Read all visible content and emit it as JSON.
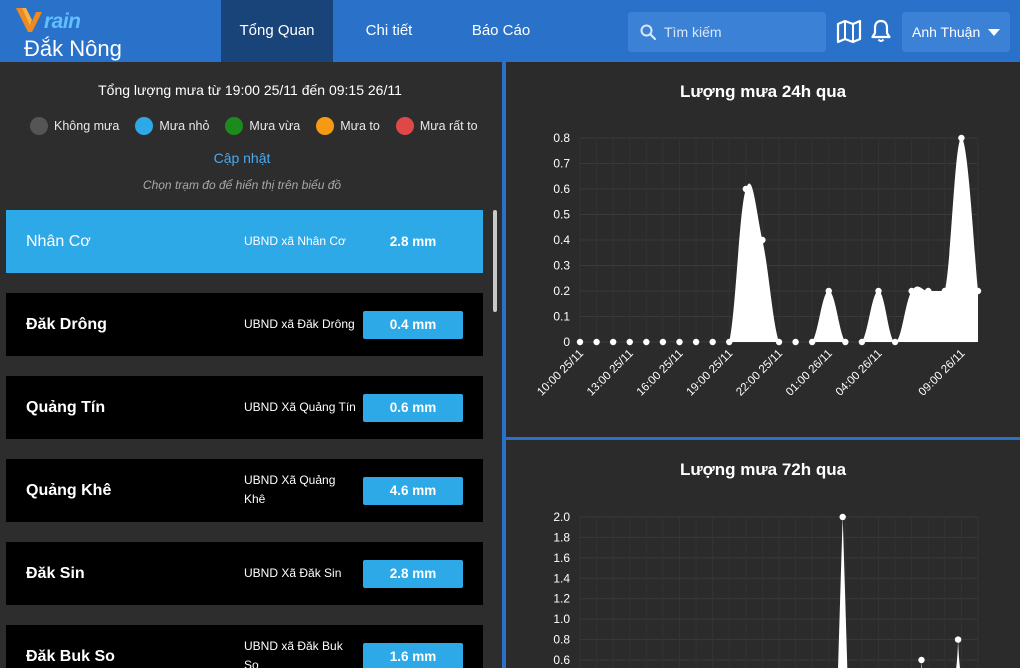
{
  "header": {
    "logo_text": "rain",
    "logo_v": "V",
    "province": "Đắk Nông",
    "tabs": [
      {
        "label": "Tổng Quan",
        "active": true
      },
      {
        "label": "Chi tiết",
        "active": false
      },
      {
        "label": "Báo Cáo",
        "active": false
      }
    ],
    "search_placeholder": "Tìm kiếm",
    "map_icon": "map-icon",
    "bell_icon": "bell-icon",
    "user_name": "Anh Thuận"
  },
  "summary": {
    "text": "Tổng lượng mưa từ 19:00 25/11 đến 09:15 26/11",
    "legend": [
      {
        "label": "Không mưa",
        "color": "#555555"
      },
      {
        "label": "Mưa nhỏ",
        "color": "#2ea9e8"
      },
      {
        "label": "Mưa vừa",
        "color": "#1d8a1d"
      },
      {
        "label": "Mưa to",
        "color": "#f59a12"
      },
      {
        "label": "Mưa rất to",
        "color": "#e04848"
      }
    ],
    "update_label": "Cập nhật",
    "hint": "Chọn trạm đo để hiển thị trên biểu đồ"
  },
  "stations": [
    {
      "name": "Nhân Cơ",
      "org": "UBND xã Nhân Cơ",
      "value": "2.8 mm",
      "selected": true
    },
    {
      "name": "Đăk Drông",
      "org": "UBND xã Đăk Drông",
      "value": "0.4 mm",
      "selected": false
    },
    {
      "name": "Quảng Tín",
      "org": "UBND Xã Quảng Tín",
      "value": "0.6 mm",
      "selected": false
    },
    {
      "name": "Quảng Khê",
      "org": "UBND Xã Quảng Khê",
      "value": "4.6 mm",
      "selected": false
    },
    {
      "name": "Đăk Sin",
      "org": "UBND Xã Đăk Sin",
      "value": "2.8 mm",
      "selected": false
    },
    {
      "name": "Đăk Buk So",
      "org": "UBND xã Đăk Buk So",
      "value": "1.6 mm",
      "selected": false
    }
  ],
  "chart_data": [
    {
      "type": "area",
      "title": "Lượng mưa 24h qua",
      "ylim": [
        0,
        0.8
      ],
      "yticks": [
        "0",
        "0.1",
        "0.2",
        "0.3",
        "0.4",
        "0.5",
        "0.6",
        "0.7",
        "0.8"
      ],
      "xticks": [
        "10:00 25/11",
        "13:00 25/11",
        "16:00 25/11",
        "19:00 25/11",
        "22:00 25/11",
        "01:00 26/11",
        "04:00 26/11",
        "09:00 26/11"
      ],
      "xtick_index": [
        0,
        3,
        6,
        9,
        12,
        15,
        18,
        23
      ],
      "x": [
        "10:00 25/11",
        "11:00 25/11",
        "12:00 25/11",
        "13:00 25/11",
        "14:00 25/11",
        "15:00 25/11",
        "16:00 25/11",
        "17:00 25/11",
        "18:00 25/11",
        "19:00 25/11",
        "20:00 25/11",
        "21:00 25/11",
        "22:00 25/11",
        "23:00 25/11",
        "00:00 26/11",
        "01:00 26/11",
        "02:00 26/11",
        "03:00 26/11",
        "04:00 26/11",
        "05:00 26/11",
        "06:00 26/11",
        "07:00 26/11",
        "08:00 26/11",
        "09:00 26/11",
        "10:00 26/11"
      ],
      "values": [
        0,
        0,
        0,
        0,
        0,
        0,
        0,
        0,
        0,
        0,
        0.6,
        0.4,
        0,
        0,
        0,
        0.2,
        0,
        0,
        0.2,
        0,
        0.2,
        0.2,
        0.2,
        0.8,
        0.2
      ],
      "grid": true
    },
    {
      "type": "area",
      "title": "Lượng mưa 72h qua",
      "ylim": [
        0.6,
        2.0
      ],
      "yticks": [
        "0.6",
        "0.8",
        "1.0",
        "1.2",
        "1.4",
        "1.6",
        "1.8",
        "2.0"
      ],
      "points": [
        {
          "x": 0.66,
          "y": 2.0
        },
        {
          "x": 0.858,
          "y": 0.6
        },
        {
          "x": 0.95,
          "y": 0.8
        }
      ],
      "grid": true
    }
  ]
}
